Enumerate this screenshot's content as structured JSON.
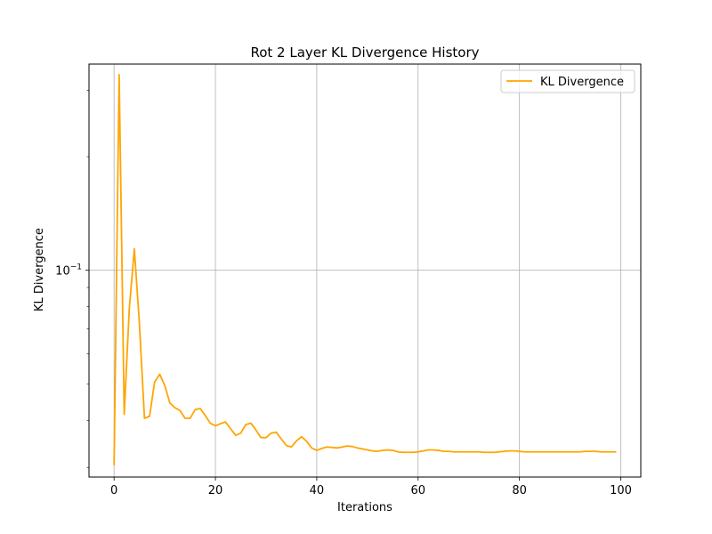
{
  "chart_data": {
    "type": "line",
    "title": "Rot 2 Layer KL Divergence History",
    "xlabel": "Iterations",
    "ylabel": "KL Divergence",
    "yscale": "log",
    "xlim": [
      -4.95,
      103.95
    ],
    "ylim": [
      0.0283,
      0.352
    ],
    "grid": true,
    "legend_position": "top-right",
    "x_ticks": [
      0,
      20,
      40,
      60,
      80,
      100
    ],
    "y_major_ticks": [
      {
        "value": 0.1,
        "label": "10^-1"
      }
    ],
    "y_minor_ticks": [
      0.03,
      0.04,
      0.05,
      0.06,
      0.07,
      0.08,
      0.09,
      0.2,
      0.3
    ],
    "series": [
      {
        "name": "KL Divergence",
        "color": "#ffa500",
        "x": [
          0,
          1,
          2,
          3,
          4,
          5,
          6,
          7,
          8,
          9,
          10,
          11,
          12,
          13,
          14,
          15,
          16,
          17,
          18,
          19,
          20,
          21,
          22,
          23,
          24,
          25,
          26,
          27,
          28,
          29,
          30,
          31,
          32,
          33,
          34,
          35,
          36,
          37,
          38,
          39,
          40,
          41,
          42,
          43,
          44,
          45,
          46,
          47,
          48,
          49,
          50,
          51,
          52,
          53,
          54,
          55,
          56,
          57,
          58,
          59,
          60,
          61,
          62,
          63,
          64,
          65,
          66,
          67,
          68,
          69,
          70,
          71,
          72,
          73,
          74,
          75,
          76,
          77,
          78,
          79,
          80,
          81,
          82,
          83,
          84,
          85,
          86,
          87,
          88,
          89,
          90,
          91,
          92,
          93,
          94,
          95,
          96,
          97,
          98,
          99
        ],
        "y": [
          0.0305,
          0.33,
          0.0415,
          0.079,
          0.114,
          0.072,
          0.0405,
          0.041,
          0.0505,
          0.053,
          0.0495,
          0.0445,
          0.0432,
          0.0425,
          0.0405,
          0.0405,
          0.0427,
          0.043,
          0.0412,
          0.0393,
          0.0387,
          0.0392,
          0.0396,
          0.038,
          0.0365,
          0.037,
          0.039,
          0.0393,
          0.0377,
          0.036,
          0.036,
          0.037,
          0.0372,
          0.0357,
          0.0343,
          0.034,
          0.0353,
          0.0362,
          0.0352,
          0.0338,
          0.0333,
          0.0337,
          0.034,
          0.0339,
          0.0338,
          0.034,
          0.0342,
          0.0341,
          0.0338,
          0.0336,
          0.0334,
          0.0332,
          0.0331,
          0.0333,
          0.0334,
          0.0333,
          0.033,
          0.0329,
          0.0329,
          0.0329,
          0.033,
          0.0332,
          0.0334,
          0.0334,
          0.0333,
          0.0331,
          0.0331,
          0.033,
          0.033,
          0.033,
          0.033,
          0.033,
          0.033,
          0.0329,
          0.0329,
          0.0329,
          0.033,
          0.0331,
          0.0332,
          0.0332,
          0.0331,
          0.033,
          0.033,
          0.033,
          0.033,
          0.033,
          0.033,
          0.033,
          0.033,
          0.033,
          0.033,
          0.033,
          0.033,
          0.0331,
          0.0331,
          0.0331,
          0.033,
          0.033,
          0.033,
          0.033
        ]
      }
    ]
  }
}
